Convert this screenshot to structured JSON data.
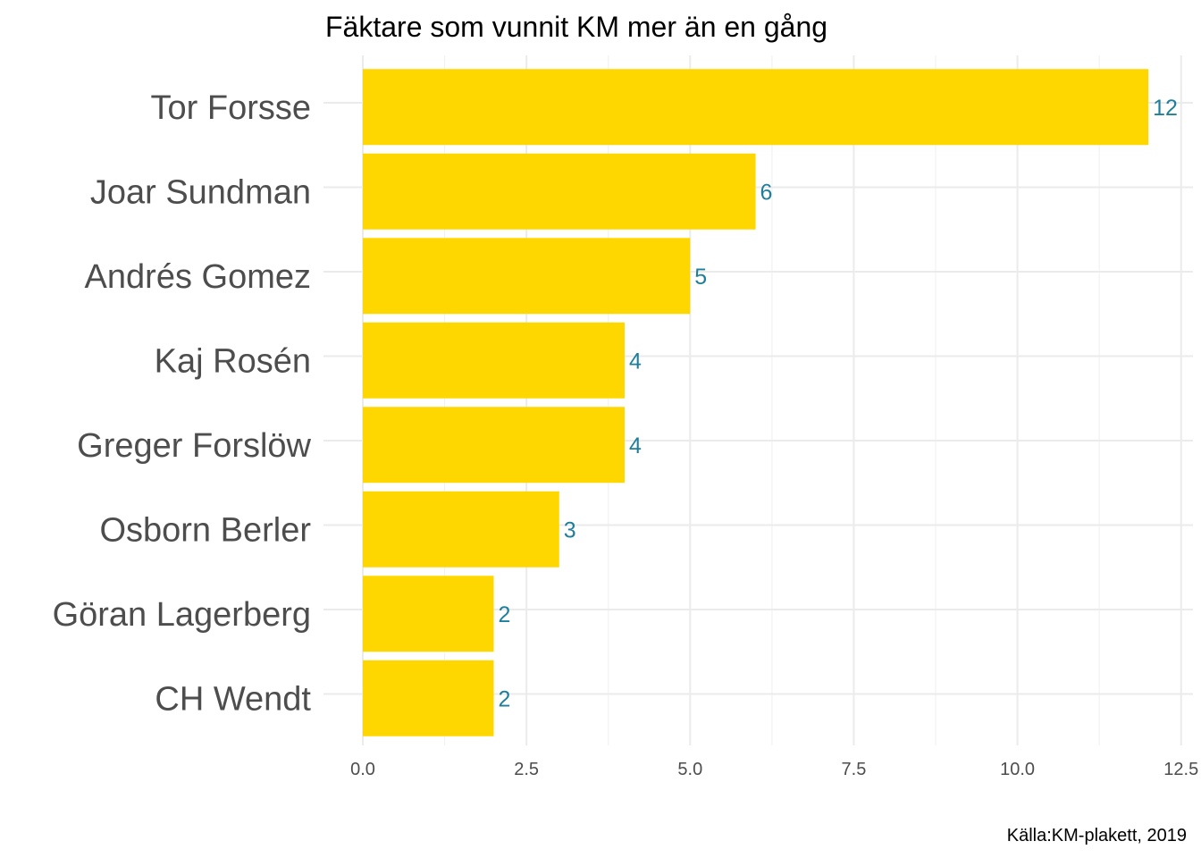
{
  "chart_data": {
    "type": "bar",
    "orientation": "horizontal",
    "title": "Fäktare som vunnit KM mer än en gång",
    "caption": "Källa:KM-plakett, 2019",
    "xlabel": "",
    "ylabel": "",
    "categories": [
      "Tor Forsse",
      "Joar Sundman",
      "Andrés Gomez",
      "Kaj Rosén",
      "Greger Forslöw",
      "Osborn Berler",
      "Göran Lagerberg",
      "CH Wendt"
    ],
    "values": [
      12,
      6,
      5,
      4,
      4,
      3,
      2,
      2
    ],
    "value_labels": [
      "12",
      "6",
      "5",
      "4",
      "4",
      "3",
      "2",
      "2"
    ],
    "xlim": [
      0,
      12.5
    ],
    "x_ticks": [
      0,
      2.5,
      5,
      7.5,
      10,
      12.5
    ],
    "x_tick_labels": [
      "0.0",
      "2.5",
      "5.0",
      "7.5",
      "10.0",
      "12.5"
    ],
    "grid": true,
    "legend": "none",
    "bar_color": "#FFD700",
    "label_color": "#1F7F9A"
  }
}
